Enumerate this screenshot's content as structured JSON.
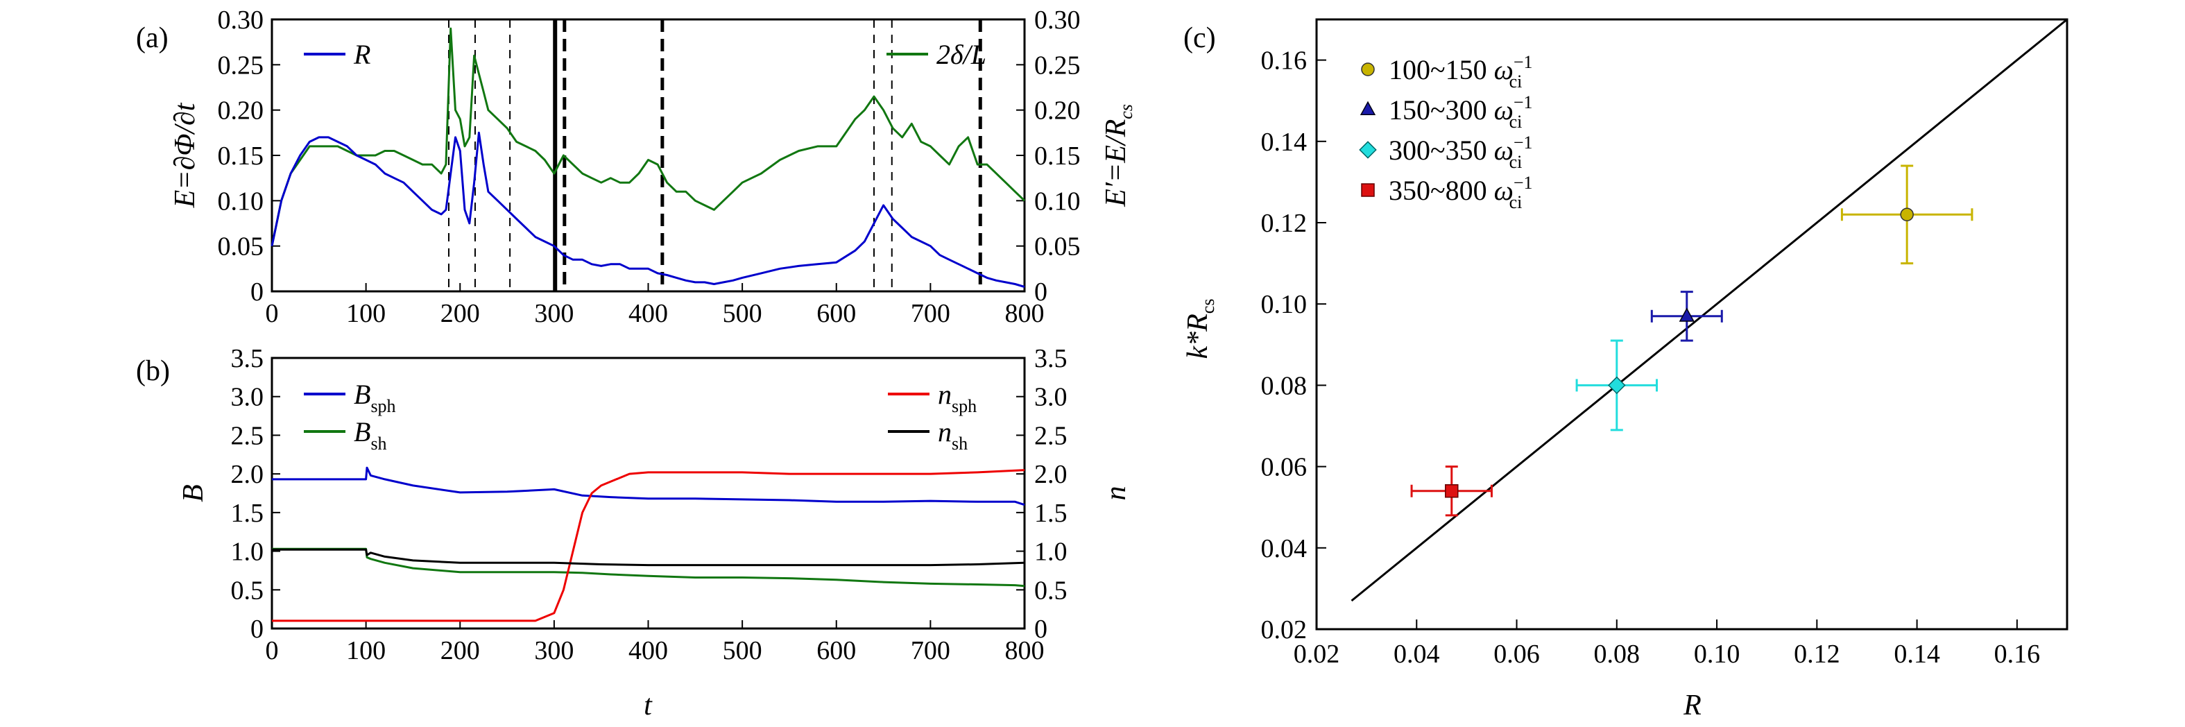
{
  "chart_data": [
    {
      "panel": "(a)",
      "type": "line",
      "xlim": [
        0,
        800
      ],
      "ylim": [
        0,
        0.3
      ],
      "y2lim": [
        0,
        0.3
      ],
      "xticks": [
        0,
        100,
        200,
        300,
        400,
        500,
        600,
        700,
        800
      ],
      "yticks": [
        0,
        0.05,
        0.1,
        0.15,
        0.2,
        0.25,
        0.3
      ],
      "yticklabels": [
        "0",
        "0.05",
        "0.10",
        "0.15",
        "0.20",
        "0.25",
        "0.30"
      ],
      "ylabel": "E=∂Φ/∂t",
      "y2label": "E′=E/R",
      "y2label_sub": "cs",
      "series": [
        {
          "name": "R",
          "color": "#0000cc",
          "x": [
            0,
            10,
            20,
            30,
            40,
            50,
            60,
            70,
            80,
            90,
            100,
            110,
            120,
            130,
            140,
            150,
            160,
            170,
            180,
            185,
            190,
            195,
            200,
            205,
            210,
            215,
            220,
            225,
            230,
            240,
            250,
            260,
            270,
            280,
            290,
            300,
            310,
            320,
            330,
            340,
            350,
            360,
            370,
            380,
            390,
            400,
            410,
            420,
            430,
            440,
            450,
            460,
            470,
            480,
            490,
            500,
            520,
            540,
            560,
            580,
            600,
            620,
            630,
            640,
            650,
            660,
            670,
            680,
            690,
            700,
            710,
            720,
            730,
            740,
            750,
            760,
            770,
            780,
            790,
            800
          ],
          "y": [
            0.05,
            0.1,
            0.13,
            0.15,
            0.165,
            0.17,
            0.17,
            0.165,
            0.16,
            0.15,
            0.145,
            0.14,
            0.13,
            0.125,
            0.12,
            0.11,
            0.1,
            0.09,
            0.085,
            0.09,
            0.13,
            0.17,
            0.155,
            0.09,
            0.075,
            0.12,
            0.175,
            0.14,
            0.11,
            0.1,
            0.09,
            0.08,
            0.07,
            0.06,
            0.055,
            0.05,
            0.04,
            0.035,
            0.035,
            0.03,
            0.028,
            0.03,
            0.03,
            0.025,
            0.025,
            0.025,
            0.02,
            0.018,
            0.015,
            0.012,
            0.01,
            0.01,
            0.008,
            0.01,
            0.012,
            0.015,
            0.02,
            0.025,
            0.028,
            0.03,
            0.032,
            0.045,
            0.055,
            0.075,
            0.095,
            0.08,
            0.07,
            0.06,
            0.055,
            0.05,
            0.04,
            0.035,
            0.03,
            0.025,
            0.02,
            0.015,
            0.012,
            0.01,
            0.008,
            0.005
          ]
        },
        {
          "name": "2δ/L",
          "color": "#117711",
          "x": [
            0,
            10,
            20,
            30,
            40,
            50,
            60,
            70,
            80,
            90,
            100,
            110,
            120,
            130,
            140,
            150,
            160,
            170,
            180,
            185,
            190,
            195,
            200,
            205,
            210,
            215,
            220,
            225,
            230,
            240,
            250,
            260,
            270,
            280,
            290,
            300,
            310,
            320,
            330,
            340,
            350,
            360,
            370,
            380,
            390,
            400,
            410,
            420,
            430,
            440,
            450,
            460,
            470,
            480,
            490,
            500,
            520,
            540,
            560,
            580,
            600,
            620,
            630,
            640,
            650,
            660,
            670,
            680,
            690,
            700,
            710,
            720,
            730,
            740,
            750,
            760,
            770,
            780,
            790,
            800
          ],
          "y": [
            0.05,
            0.1,
            0.13,
            0.145,
            0.16,
            0.16,
            0.16,
            0.16,
            0.155,
            0.15,
            0.15,
            0.15,
            0.155,
            0.155,
            0.15,
            0.145,
            0.14,
            0.14,
            0.13,
            0.14,
            0.29,
            0.2,
            0.19,
            0.16,
            0.17,
            0.26,
            0.24,
            0.22,
            0.2,
            0.19,
            0.18,
            0.165,
            0.16,
            0.155,
            0.145,
            0.13,
            0.15,
            0.14,
            0.13,
            0.125,
            0.12,
            0.125,
            0.12,
            0.12,
            0.13,
            0.145,
            0.14,
            0.12,
            0.11,
            0.11,
            0.1,
            0.095,
            0.09,
            0.1,
            0.11,
            0.12,
            0.13,
            0.145,
            0.155,
            0.16,
            0.16,
            0.19,
            0.2,
            0.215,
            0.2,
            0.18,
            0.17,
            0.185,
            0.165,
            0.16,
            0.15,
            0.14,
            0.16,
            0.17,
            0.14,
            0.14,
            0.13,
            0.12,
            0.11,
            0.1
          ]
        }
      ],
      "vlines": [
        {
          "x": 188,
          "style": "thin-dash"
        },
        {
          "x": 216,
          "style": "thin-dash"
        },
        {
          "x": 253,
          "style": "thin-dash"
        },
        {
          "x": 301,
          "style": "thick-solid"
        },
        {
          "x": 311,
          "style": "thick-dash"
        },
        {
          "x": 415,
          "style": "thick-dash"
        },
        {
          "x": 640,
          "style": "thin-dash"
        },
        {
          "x": 659,
          "style": "thin-dash"
        },
        {
          "x": 753,
          "style": "thick-dash"
        }
      ],
      "legend_left": "R",
      "legend_right": "2δ/L"
    },
    {
      "panel": "(b)",
      "type": "line",
      "xlim": [
        0,
        800
      ],
      "ylim": [
        0,
        3.5
      ],
      "y2lim": [
        0,
        3.5
      ],
      "xticks": [
        0,
        100,
        200,
        300,
        400,
        500,
        600,
        700,
        800
      ],
      "yticks": [
        0,
        0.5,
        1,
        1.5,
        2,
        2.5,
        3,
        3.5
      ],
      "yticklabels": [
        "0",
        "0.5",
        "1.0",
        "1.5",
        "2.0",
        "2.5",
        "3.0",
        "3.5"
      ],
      "xlabel": "t",
      "ylabel": "B",
      "y2label": "n",
      "series": [
        {
          "name": "B",
          "sub": "sph",
          "color": "#0000cc",
          "x": [
            0,
            100,
            101,
            105,
            120,
            150,
            200,
            250,
            300,
            330,
            360,
            400,
            450,
            500,
            550,
            600,
            650,
            700,
            750,
            790,
            800
          ],
          "y": [
            1.93,
            1.93,
            2.08,
            1.98,
            1.93,
            1.85,
            1.76,
            1.77,
            1.8,
            1.72,
            1.7,
            1.68,
            1.68,
            1.67,
            1.66,
            1.64,
            1.64,
            1.65,
            1.64,
            1.64,
            1.6
          ]
        },
        {
          "name": "B",
          "sub": "sh",
          "color": "#117711",
          "x": [
            0,
            100,
            101,
            105,
            120,
            150,
            200,
            250,
            300,
            330,
            360,
            400,
            450,
            500,
            550,
            600,
            650,
            700,
            750,
            790,
            800
          ],
          "y": [
            1.03,
            1.03,
            0.92,
            0.9,
            0.85,
            0.78,
            0.73,
            0.73,
            0.73,
            0.72,
            0.7,
            0.68,
            0.66,
            0.66,
            0.65,
            0.63,
            0.6,
            0.58,
            0.57,
            0.56,
            0.55
          ]
        },
        {
          "name": "n",
          "sub": "sph",
          "color": "#ee0000",
          "x": [
            0,
            100,
            200,
            280,
            300,
            310,
            320,
            330,
            340,
            350,
            360,
            370,
            380,
            400,
            450,
            500,
            550,
            600,
            650,
            700,
            750,
            800
          ],
          "y": [
            0.1,
            0.1,
            0.1,
            0.1,
            0.2,
            0.5,
            1.0,
            1.5,
            1.75,
            1.85,
            1.9,
            1.95,
            2.0,
            2.02,
            2.02,
            2.02,
            2.0,
            2.0,
            2.0,
            2.0,
            2.02,
            2.05
          ]
        },
        {
          "name": "n",
          "sub": "sh",
          "color": "#000000",
          "x": [
            0,
            100,
            101,
            105,
            120,
            150,
            200,
            250,
            300,
            350,
            400,
            450,
            500,
            550,
            600,
            650,
            700,
            750,
            800
          ],
          "y": [
            1.02,
            1.02,
            0.95,
            0.98,
            0.93,
            0.88,
            0.85,
            0.85,
            0.85,
            0.83,
            0.82,
            0.82,
            0.82,
            0.82,
            0.82,
            0.82,
            0.82,
            0.83,
            0.85
          ]
        }
      ]
    },
    {
      "panel": "(c)",
      "type": "scatter",
      "xlim": [
        0.02,
        0.17
      ],
      "ylim": [
        0.02,
        0.17
      ],
      "xticks": [
        0.02,
        0.04,
        0.06,
        0.08,
        0.1,
        0.12,
        0.14,
        0.16
      ],
      "xticklabels": [
        "0.02",
        "0.04",
        "0.06",
        "0.08",
        "0.10",
        "0.12",
        "0.14",
        "0.16"
      ],
      "yticks": [
        0.02,
        0.04,
        0.06,
        0.08,
        0.1,
        0.12,
        0.14,
        0.16
      ],
      "yticklabels": [
        "0.02",
        "0.04",
        "0.06",
        "0.08",
        "0.10",
        "0.12",
        "0.14",
        "0.16"
      ],
      "xlabel": "R",
      "ylabel": "k*R",
      "ylabel_sub": "cs",
      "fit_line": {
        "x": [
          0.027,
          0.17
        ],
        "y": [
          0.027,
          0.17
        ]
      },
      "points": [
        {
          "label": "100~150 ω",
          "sup": "−1",
          "sub": "ci",
          "color": "#c8b400",
          "marker": "circle",
          "x": 0.138,
          "y": 0.122,
          "xerr": 0.013,
          "yerr": 0.012
        },
        {
          "label": "150~300 ω",
          "sup": "−1",
          "sub": "ci",
          "color": "#1a1aaa",
          "marker": "triangle",
          "x": 0.094,
          "y": 0.097,
          "xerr": 0.007,
          "yerr": 0.006
        },
        {
          "label": "300~350 ω",
          "sup": "−1",
          "sub": "ci",
          "color": "#22dddd",
          "marker": "diamond",
          "x": 0.08,
          "y": 0.08,
          "xerr": 0.008,
          "yerr": 0.011
        },
        {
          "label": "350~800 ω",
          "sup": "−1",
          "sub": "ci",
          "color": "#dd1111",
          "marker": "square",
          "x": 0.047,
          "y": 0.054,
          "xerr": 0.008,
          "yerr": 0.006
        }
      ]
    }
  ],
  "panel_labels": {
    "a": "(a)",
    "b": "(b)",
    "c": "(c)"
  }
}
